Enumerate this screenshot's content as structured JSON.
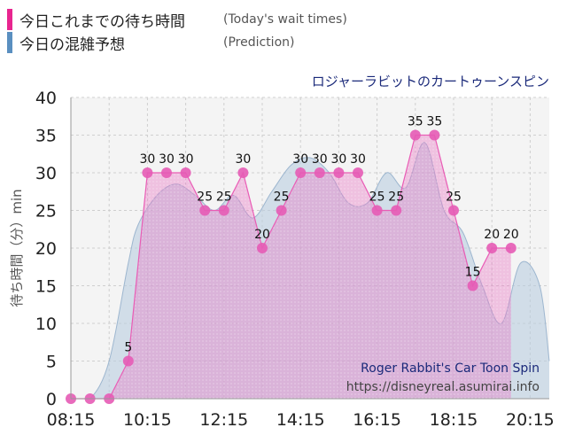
{
  "legend": {
    "today": {
      "label": "今日これまでの待ち時間",
      "sub": "(Today's wait times)",
      "color": "#e8258f"
    },
    "prediction": {
      "label": "今日の混雑予想",
      "sub": "(Prediction)",
      "color": "#5a8fc0"
    }
  },
  "attraction_jp": "ロジャーラビットのカートゥーンスピン",
  "watermark": {
    "title": "Roger Rabbit's Car Toon Spin",
    "url": "https://disneyreal.asumirai.info"
  },
  "chart_data": {
    "type": "area",
    "ylabel": "待ち時間（分）min",
    "ylim": [
      0,
      40
    ],
    "yticks": [
      "0",
      "5",
      "10",
      "15",
      "20",
      "25",
      "30",
      "35",
      "40"
    ],
    "xlim": [
      "08:15",
      "20:45"
    ],
    "xticks": [
      "08:15",
      "10:15",
      "12:15",
      "14:15",
      "16:15",
      "18:15",
      "20:15"
    ],
    "grid": true,
    "series": [
      {
        "key": "today",
        "name": "今日これまでの待ち時間",
        "x": [
          "08:15",
          "08:45",
          "09:15",
          "09:45",
          "10:15",
          "10:45",
          "11:15",
          "11:45",
          "12:15",
          "12:45",
          "13:15",
          "13:45",
          "14:15",
          "14:45",
          "15:15",
          "15:45",
          "16:15",
          "16:45",
          "17:15",
          "17:45",
          "18:15",
          "18:45",
          "19:15",
          "19:45"
        ],
        "values": [
          0,
          0,
          0,
          5,
          30,
          30,
          30,
          25,
          25,
          30,
          20,
          25,
          30,
          30,
          30,
          30,
          25,
          25,
          35,
          35,
          25,
          15,
          20,
          20
        ]
      },
      {
        "key": "prediction",
        "name": "今日の混雑予想",
        "x": [
          "08:15",
          "08:45",
          "09:15",
          "09:45",
          "10:00",
          "10:30",
          "11:00",
          "11:30",
          "12:00",
          "12:30",
          "13:00",
          "13:30",
          "14:00",
          "14:30",
          "15:00",
          "15:30",
          "16:00",
          "16:30",
          "17:00",
          "17:30",
          "18:00",
          "18:30",
          "19:00",
          "19:30",
          "20:00",
          "20:30",
          "20:45"
        ],
        "values": [
          0,
          0,
          5,
          18,
          23,
          27,
          28.5,
          27,
          25,
          27,
          24,
          27.5,
          31,
          32,
          30,
          26,
          26,
          30,
          28,
          34,
          25,
          22,
          15,
          10,
          18,
          15,
          5
        ]
      }
    ]
  }
}
